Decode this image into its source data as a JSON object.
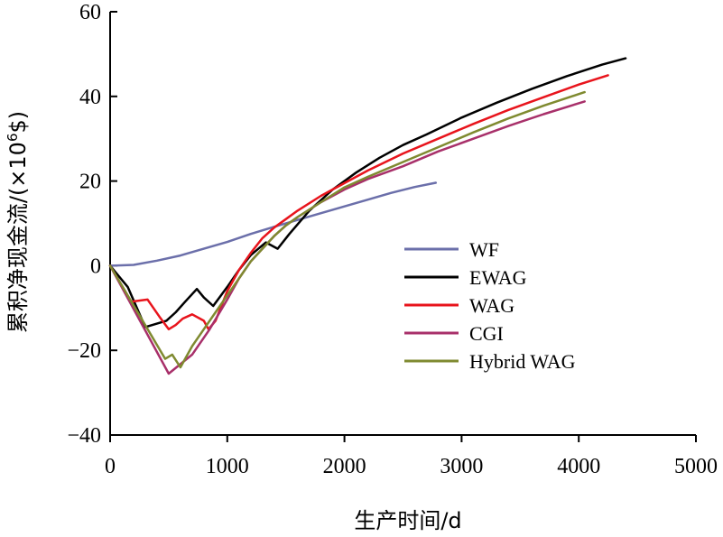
{
  "chart_data": {
    "type": "line",
    "title": "",
    "xlabel": "生产时间/d",
    "ylabel_parts": [
      "累积净现金流/(×10",
      "6",
      "$)"
    ],
    "xlim": [
      0,
      5000
    ],
    "ylim": [
      -40,
      60
    ],
    "x_ticks": [
      0,
      1000,
      2000,
      3000,
      4000,
      5000
    ],
    "y_ticks": [
      -40,
      -20,
      0,
      20,
      40,
      60
    ],
    "x_tick_labels": [
      "0",
      "1000",
      "2000",
      "3000",
      "4000",
      "5000"
    ],
    "y_tick_labels": [
      "−40",
      "−20",
      "0",
      "20",
      "40",
      "60"
    ],
    "grid": false,
    "legend_position": "center-right",
    "colors": {
      "axis": "#000000",
      "wf": "#6b6faa",
      "ewag": "#000000",
      "wag": "#e8141c",
      "cgi": "#a8306a",
      "hybrid": "#7f8a30"
    },
    "series": [
      {
        "name": "WF",
        "color": "#6b6faa",
        "points": [
          [
            0,
            0
          ],
          [
            200,
            0.2
          ],
          [
            400,
            1.2
          ],
          [
            600,
            2.4
          ],
          [
            800,
            4.0
          ],
          [
            1000,
            5.6
          ],
          [
            1200,
            7.5
          ],
          [
            1400,
            9.2
          ],
          [
            1600,
            10.8
          ],
          [
            1800,
            12.4
          ],
          [
            2000,
            14.0
          ],
          [
            2200,
            15.6
          ],
          [
            2400,
            17.2
          ],
          [
            2600,
            18.6
          ],
          [
            2780,
            19.6
          ]
        ]
      },
      {
        "name": "EWAG",
        "color": "#000000",
        "points": [
          [
            0,
            0
          ],
          [
            150,
            -5
          ],
          [
            300,
            -14.5
          ],
          [
            480,
            -13
          ],
          [
            560,
            -11
          ],
          [
            640,
            -8.5
          ],
          [
            740,
            -5.5
          ],
          [
            800,
            -7.5
          ],
          [
            880,
            -9.5
          ],
          [
            1000,
            -5
          ],
          [
            1100,
            -1
          ],
          [
            1200,
            2.5
          ],
          [
            1330,
            5.5
          ],
          [
            1430,
            4.0
          ],
          [
            1530,
            7.5
          ],
          [
            1700,
            13
          ],
          [
            1900,
            18
          ],
          [
            2100,
            22
          ],
          [
            2300,
            25.5
          ],
          [
            2500,
            28.5
          ],
          [
            2700,
            31
          ],
          [
            3000,
            35
          ],
          [
            3300,
            38.5
          ],
          [
            3600,
            41.8
          ],
          [
            3900,
            44.8
          ],
          [
            4200,
            47.5
          ],
          [
            4400,
            49
          ]
        ]
      },
      {
        "name": "WAG",
        "color": "#e8141c",
        "points": [
          [
            0,
            0
          ],
          [
            180,
            -8.5
          ],
          [
            320,
            -8
          ],
          [
            420,
            -12
          ],
          [
            500,
            -15
          ],
          [
            560,
            -14
          ],
          [
            620,
            -12.5
          ],
          [
            700,
            -11.5
          ],
          [
            800,
            -13
          ],
          [
            840,
            -15
          ],
          [
            900,
            -13
          ],
          [
            1000,
            -6
          ],
          [
            1100,
            -1
          ],
          [
            1200,
            3
          ],
          [
            1300,
            6.5
          ],
          [
            1400,
            9
          ],
          [
            1500,
            11
          ],
          [
            1600,
            13
          ],
          [
            1800,
            16.5
          ],
          [
            2000,
            19.5
          ],
          [
            2200,
            22.5
          ],
          [
            2500,
            26.5
          ],
          [
            2800,
            30
          ],
          [
            3100,
            33.5
          ],
          [
            3400,
            36.8
          ],
          [
            3700,
            39.8
          ],
          [
            4000,
            42.8
          ],
          [
            4250,
            45
          ]
        ]
      },
      {
        "name": "CGI",
        "color": "#a8306a",
        "points": [
          [
            0,
            0
          ],
          [
            500,
            -25.5
          ],
          [
            700,
            -21
          ],
          [
            850,
            -15
          ],
          [
            1000,
            -8
          ],
          [
            1100,
            -3
          ],
          [
            1200,
            1
          ],
          [
            1300,
            4
          ],
          [
            1400,
            7
          ],
          [
            1500,
            9.5
          ],
          [
            1600,
            11.5
          ],
          [
            1800,
            15
          ],
          [
            2000,
            18
          ],
          [
            2200,
            20.5
          ],
          [
            2500,
            23.5
          ],
          [
            2800,
            27
          ],
          [
            3100,
            30
          ],
          [
            3400,
            33
          ],
          [
            3700,
            35.8
          ],
          [
            4050,
            38.8
          ]
        ]
      },
      {
        "name": "Hybrid WAG",
        "color": "#7f8a30",
        "points": [
          [
            0,
            0
          ],
          [
            470,
            -22
          ],
          [
            530,
            -21
          ],
          [
            600,
            -24
          ],
          [
            700,
            -19
          ],
          [
            800,
            -15
          ],
          [
            900,
            -11
          ],
          [
            1000,
            -7
          ],
          [
            1100,
            -3
          ],
          [
            1200,
            1
          ],
          [
            1300,
            4
          ],
          [
            1400,
            7
          ],
          [
            1500,
            9.5
          ],
          [
            1600,
            11.5
          ],
          [
            1800,
            15
          ],
          [
            2000,
            18.5
          ],
          [
            2200,
            21
          ],
          [
            2500,
            24.5
          ],
          [
            2800,
            28
          ],
          [
            3100,
            31.5
          ],
          [
            3400,
            34.8
          ],
          [
            3700,
            37.8
          ],
          [
            4050,
            41
          ]
        ]
      }
    ]
  }
}
